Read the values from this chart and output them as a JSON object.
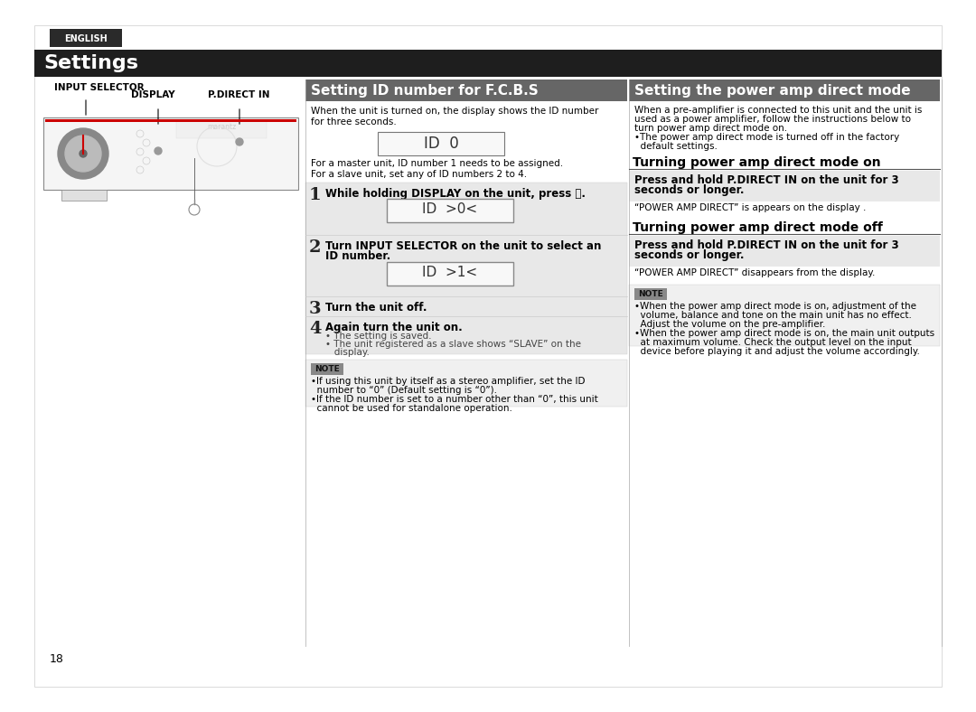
{
  "page_bg": "#ffffff",
  "page_number": "18",
  "english_tab_bg": "#2a2a2a",
  "english_tab_text": "ENGLISH",
  "english_tab_color": "#ffffff",
  "settings_bar_bg": "#1e1e1e",
  "settings_title": "Settings",
  "settings_title_color": "#ffffff",
  "section1_header_bg": "#666666",
  "section1_header_text": "Setting ID number for F.C.B.S",
  "section1_header_color": "#ffffff",
  "section2_header_bg": "#666666",
  "section2_header_text": "Setting the power amp direct mode",
  "section2_header_color": "#ffffff",
  "s1_intro": "When the unit is turned on, the display shows the ID number\nfor three seconds.",
  "s1_master_slave": "For a master unit, ID number 1 needs to be assigned.\nFor a slave unit, set any of ID numbers 2 to 4.",
  "step1_title": "While holding DISPLAY on the unit, press ⏻.",
  "step2_title_l1": "Turn INPUT SELECTOR on the unit to select an",
  "step2_title_l2": "ID number.",
  "step3_title": "Turn the unit off.",
  "step4_title": "Again turn the unit on.",
  "step4_b1": "• The setting is saved.",
  "step4_b2": "• The unit registered as a slave shows “SLAVE” on the",
  "step4_b3": "   display.",
  "note1_bullets_l1": "•If using this unit by itself as a stereo amplifier, set the ID",
  "note1_bullets_l2": "  number to “0” (Default setting is “0”).",
  "note1_bullets_l3": "•If the ID number is set to a number other than “0”, this unit",
  "note1_bullets_l4": "  cannot be used for standalone operation.",
  "s2_intro_l1": "When a pre-amplifier is connected to this unit and the unit is",
  "s2_intro_l2": "used as a power amplifier, follow the instructions below to",
  "s2_intro_l3": "turn power amp direct mode on.",
  "s2_intro_l4": "•The power amp direct mode is turned off in the factory",
  "s2_intro_l5": "  default settings.",
  "s2_sub1_title": "Turning power amp direct mode on",
  "s2_sub1_bold_l1": "Press and hold P.DIRECT IN on the unit for 3",
  "s2_sub1_bold_l2": "seconds or longer.",
  "s2_sub1_body": "“POWER AMP DIRECT” is appears on the display .",
  "s2_sub2_title": "Turning power amp direct mode off",
  "s2_sub2_bold_l1": "Press and hold P.DIRECT IN on the unit for 3",
  "s2_sub2_bold_l2": "seconds or longer.",
  "s2_sub2_body": "“POWER AMP DIRECT” disappears from the display.",
  "note2_l1": "•When the power amp direct mode is on, adjustment of the",
  "note2_l2": "  volume, balance and tone on the main unit has no effect.",
  "note2_l3": "  Adjust the volume on the pre-amplifier.",
  "note2_l4": "•When the power amp direct mode is on, the main unit outputs",
  "note2_l5": "  at maximum volume. Check the output level on the input",
  "note2_l6": "  device before playing it and adjust the volume accordingly."
}
